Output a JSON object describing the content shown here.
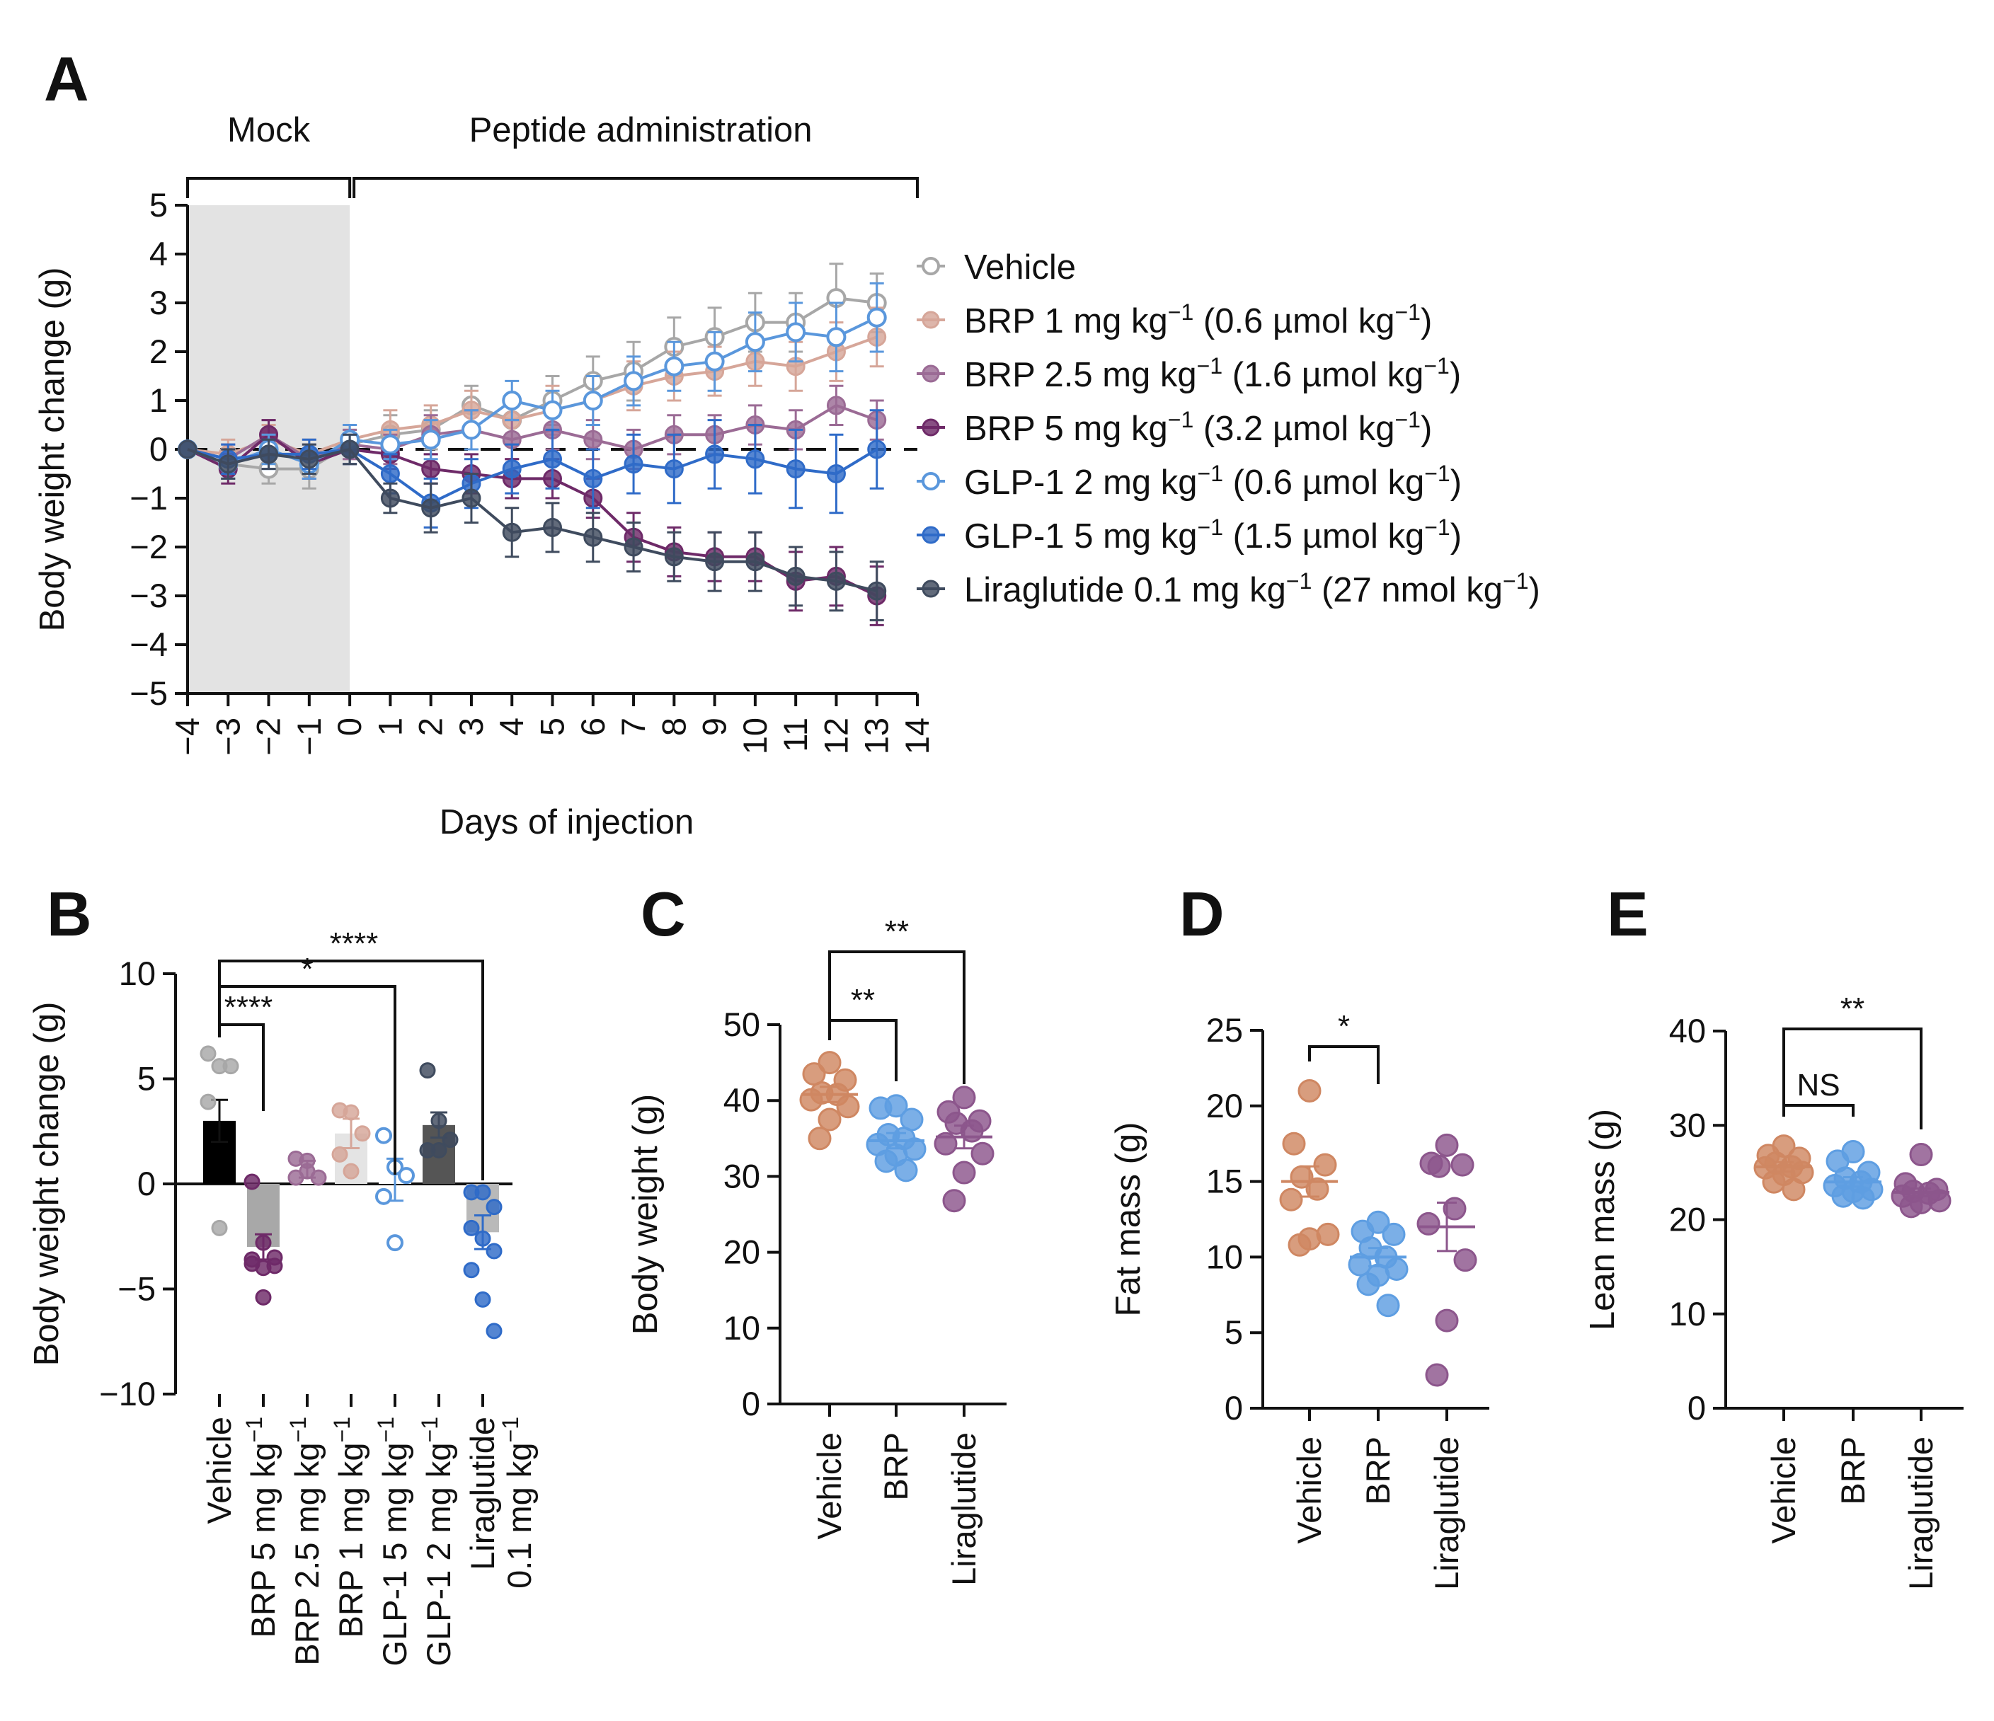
{
  "panel_labels": [
    "A",
    "B",
    "C",
    "D",
    "E"
  ],
  "colors": {
    "vehicle": "#a7a7a7",
    "brp1": "#d6a699",
    "brp25": "#9b6b95",
    "brp5": "#6e2a68",
    "glp1_2": "#5a97dc",
    "glp1_5": "#2f6bc8",
    "lira": "#3f4b5e",
    "orange": "#cf8762",
    "blue": "#5e9ee2",
    "purple": "#8c568c",
    "mock_shade": "#e3e3e3"
  },
  "chart_data": [
    {
      "panel": "A",
      "type": "line",
      "brackets": [
        "Mock",
        "Peptide administration"
      ],
      "xlabel": "Days of injection",
      "ylabel": "Body weight change (g)",
      "xlim": [
        -4,
        14
      ],
      "ylim": [
        -5,
        5
      ],
      "xticks": [
        "−4",
        "−3",
        "−2",
        "−1",
        "0",
        "1",
        "2",
        "3",
        "4",
        "5",
        "6",
        "7",
        "8",
        "9",
        "10",
        "11",
        "12",
        "13",
        "14"
      ],
      "yticks": [
        "5",
        "4",
        "3",
        "2",
        "1",
        "0",
        "−1",
        "−2",
        "−3",
        "−4",
        "−5"
      ],
      "x": [
        -4,
        -3,
        -2,
        -1,
        0,
        1,
        2,
        3,
        4,
        5,
        6,
        7,
        8,
        9,
        10,
        11,
        12,
        13
      ],
      "legend_position": "right",
      "series": [
        {
          "legend": [
            "Vehicle",
            "",
            "",
            ""
          ],
          "color_key": "vehicle",
          "filled": false,
          "values": [
            0,
            -0.3,
            -0.4,
            -0.4,
            0.1,
            0.3,
            0.4,
            0.9,
            0.6,
            1.0,
            1.4,
            1.6,
            2.1,
            2.3,
            2.6,
            2.6,
            3.1,
            3.0
          ],
          "err": [
            0,
            0.3,
            0.3,
            0.4,
            0.3,
            0.4,
            0.4,
            0.4,
            0.5,
            0.5,
            0.5,
            0.6,
            0.6,
            0.6,
            0.6,
            0.6,
            0.7,
            0.6
          ]
        },
        {
          "legend": [
            "BRP 1 mg kg",
            "−1",
            " (0.6 µmol kg",
            "−1",
            ")"
          ],
          "color_key": "brp1",
          "filled": true,
          "values": [
            0,
            -0.1,
            0.2,
            -0.1,
            0.2,
            0.4,
            0.5,
            0.8,
            0.6,
            0.8,
            1.0,
            1.3,
            1.5,
            1.6,
            1.8,
            1.7,
            2.0,
            2.3
          ],
          "err": [
            0,
            0.3,
            0.3,
            0.3,
            0.3,
            0.4,
            0.4,
            0.4,
            0.5,
            0.5,
            0.5,
            0.5,
            0.5,
            0.5,
            0.5,
            0.5,
            0.6,
            0.6
          ]
        },
        {
          "legend": [
            "BRP 2.5 mg kg",
            "−1",
            " (1.6 µmol kg",
            "−1",
            ")"
          ],
          "color_key": "brp25",
          "filled": true,
          "values": [
            0,
            -0.2,
            0.3,
            -0.2,
            0.1,
            0.0,
            0.3,
            0.4,
            0.2,
            0.4,
            0.2,
            0.0,
            0.3,
            0.3,
            0.5,
            0.4,
            0.9,
            0.6
          ],
          "err": [
            0,
            0.3,
            0.3,
            0.3,
            0.3,
            0.3,
            0.4,
            0.4,
            0.4,
            0.4,
            0.4,
            0.4,
            0.4,
            0.4,
            0.4,
            0.4,
            0.4,
            0.4
          ]
        },
        {
          "legend": [
            "BRP 5 mg kg",
            "−1",
            " (3.2 µmol kg",
            "−1",
            ")"
          ],
          "color_key": "brp5",
          "filled": true,
          "values": [
            0,
            -0.4,
            0.3,
            -0.3,
            0.0,
            -0.1,
            -0.4,
            -0.5,
            -0.6,
            -0.6,
            -1.0,
            -1.8,
            -2.1,
            -2.2,
            -2.2,
            -2.7,
            -2.6,
            -3.0
          ],
          "err": [
            0,
            0.3,
            0.3,
            0.3,
            0.3,
            0.3,
            0.3,
            0.4,
            0.4,
            0.4,
            0.4,
            0.5,
            0.5,
            0.5,
            0.5,
            0.6,
            0.6,
            0.6
          ]
        },
        {
          "legend": [
            "GLP-1 2 mg kg",
            "−1",
            " (0.6 µmol kg",
            "−1",
            ")"
          ],
          "color_key": "glp1_2",
          "filled": false,
          "values": [
            0,
            -0.3,
            0.0,
            -0.3,
            0.2,
            0.1,
            0.2,
            0.4,
            1.0,
            0.8,
            1.0,
            1.4,
            1.7,
            1.8,
            2.2,
            2.4,
            2.3,
            2.7
          ],
          "err": [
            0,
            0.3,
            0.3,
            0.3,
            0.3,
            0.3,
            0.4,
            0.4,
            0.4,
            0.4,
            0.5,
            0.5,
            0.5,
            0.6,
            0.6,
            0.6,
            0.7,
            0.7
          ]
        },
        {
          "legend": [
            "GLP-1 5 mg kg",
            "−1",
            " (1.5 µmol kg",
            "−1",
            ")"
          ],
          "color_key": "glp1_5",
          "filled": true,
          "values": [
            0,
            -0.2,
            -0.1,
            -0.1,
            0.0,
            -0.5,
            -1.1,
            -0.7,
            -0.4,
            -0.2,
            -0.6,
            -0.3,
            -0.4,
            -0.1,
            -0.2,
            -0.4,
            -0.5,
            0.0
          ],
          "err": [
            0,
            0.3,
            0.3,
            0.3,
            0.3,
            0.4,
            0.5,
            0.5,
            0.5,
            0.6,
            0.6,
            0.6,
            0.7,
            0.7,
            0.7,
            0.8,
            0.8,
            0.8
          ]
        },
        {
          "legend": [
            "Liraglutide 0.1 mg kg",
            "−1",
            " (27 nmol kg",
            "−1",
            ")"
          ],
          "color_key": "lira",
          "filled": true,
          "values": [
            0,
            -0.3,
            -0.1,
            -0.2,
            0.0,
            -1.0,
            -1.2,
            -1.0,
            -1.7,
            -1.6,
            -1.8,
            -2.0,
            -2.2,
            -2.3,
            -2.3,
            -2.6,
            -2.7,
            -2.9
          ],
          "err": [
            0,
            0.3,
            0.3,
            0.3,
            0.3,
            0.3,
            0.5,
            0.5,
            0.5,
            0.5,
            0.5,
            0.5,
            0.5,
            0.6,
            0.6,
            0.6,
            0.6,
            0.6
          ]
        }
      ]
    },
    {
      "panel": "B",
      "type": "bar",
      "ylabel": "Body weight change (g)",
      "ylim": [
        -10,
        10
      ],
      "yticks": [
        "10",
        "5",
        "0",
        "−5",
        "−10"
      ],
      "categories": [
        [
          "Vehicle"
        ],
        [
          "BRP 5 mg kg",
          "−1"
        ],
        [
          "BRP 2.5 mg kg",
          "−1"
        ],
        [
          "BRP 1 mg kg",
          "−1"
        ],
        [
          "GLP-1 5 mg kg",
          "−1"
        ],
        [
          "GLP-1 2 mg kg",
          "−1"
        ],
        [
          "Liraglutide",
          "0.1 mg kg",
          "−1"
        ]
      ],
      "bar_colors": [
        "#000000",
        "#a8a8a8",
        "#ffffff",
        "#e4e4e4",
        "#ffffff",
        "#555555",
        "#b9b9b9"
      ],
      "dot_color_keys": [
        "vehicle",
        "brp5",
        "brp25",
        "brp1",
        "glp1_2",
        "lira",
        "glp1_5"
      ],
      "dot_filled": [
        true,
        true,
        true,
        true,
        false,
        true,
        true
      ],
      "values": [
        3.0,
        -3.0,
        0.7,
        2.4,
        0.2,
        2.8,
        -2.3
      ],
      "err": [
        1.0,
        0.6,
        0.4,
        0.7,
        1.0,
        0.6,
        0.8
      ],
      "points": [
        [
          6.2,
          5.6,
          5.6,
          3.9,
          -2.1
        ],
        [
          0.1,
          -2.8,
          -3.5,
          -3.8,
          -4.0,
          -3.9,
          -3.6,
          -5.4
        ],
        [
          1.2,
          1.1,
          0.3,
          0.3,
          0.6
        ],
        [
          3.5,
          3.4,
          2.4,
          1.4,
          0.6
        ],
        [
          2.3,
          0.8,
          0.4,
          -0.6,
          -2.8
        ],
        [
          5.4,
          3.0,
          2.1,
          1.6,
          1.6
        ],
        [
          -0.4,
          -0.4,
          -1.1,
          -2.1,
          -2.6,
          -3.2,
          -4.1,
          -5.5,
          -7.0
        ]
      ],
      "significance": [
        {
          "from": 0,
          "to": 1,
          "label": "****"
        },
        {
          "from": 0,
          "to": 4,
          "label": "*"
        },
        {
          "from": 0,
          "to": 6,
          "label": "****"
        }
      ]
    },
    {
      "panel": "C",
      "type": "scatter",
      "ylabel": "Body weight (g)",
      "ylim": [
        0,
        50
      ],
      "yticks": [
        "50",
        "40",
        "30",
        "20",
        "10",
        "0"
      ],
      "categories": [
        "Vehicle",
        "BRP",
        "Liraglutide"
      ],
      "color_keys": [
        "orange",
        "blue",
        "purple"
      ],
      "means": [
        40.8,
        34.7,
        35.2
      ],
      "err": [
        1.0,
        1.0,
        1.5
      ],
      "points": [
        [
          45.0,
          43.5,
          42.7,
          41.0,
          40.8,
          40.1,
          39.2,
          37.5,
          35.0
        ],
        [
          39.3,
          39.0,
          37.5,
          35.5,
          35.0,
          34.2,
          33.6,
          32.8,
          32.0,
          30.8
        ],
        [
          40.4,
          38.5,
          37.3,
          37.0,
          36.0,
          34.3,
          33.0,
          30.5,
          26.8
        ]
      ],
      "significance": [
        {
          "from": 0,
          "to": 1,
          "label": "**"
        },
        {
          "from": 0,
          "to": 2,
          "label": "**"
        }
      ]
    },
    {
      "panel": "D",
      "type": "scatter",
      "ylabel": "Fat mass (g)",
      "ylim": [
        0,
        25
      ],
      "yticks": [
        "25",
        "20",
        "15",
        "10",
        "5",
        "0"
      ],
      "categories": [
        "Vehicle",
        "BRP",
        "Liraglutide"
      ],
      "color_keys": [
        "orange",
        "blue",
        "purple"
      ],
      "means": [
        15.0,
        10.0,
        12.0
      ],
      "err": [
        1.0,
        0.6,
        1.6
      ],
      "points": [
        [
          21.0,
          17.5,
          16.1,
          15.3,
          14.5,
          13.8,
          11.5,
          11.2,
          10.8
        ],
        [
          12.3,
          11.7,
          11.5,
          10.6,
          10.0,
          9.5,
          9.2,
          8.8,
          8.2,
          6.8
        ],
        [
          17.4,
          16.2,
          16.1,
          16.0,
          13.2,
          12.2,
          9.8,
          5.8,
          2.2
        ]
      ],
      "significance": [
        {
          "from": 0,
          "to": 1,
          "label": "*"
        }
      ]
    },
    {
      "panel": "E",
      "type": "scatter",
      "ylabel": "Lean mass (g)",
      "ylim": [
        0,
        40
      ],
      "yticks": [
        "40",
        "30",
        "20",
        "10",
        "0"
      ],
      "categories": [
        "Vehicle",
        "BRP",
        "Liraglutide"
      ],
      "color_keys": [
        "orange",
        "blue",
        "purple"
      ],
      "means": [
        25.6,
        24.0,
        22.9
      ],
      "err": [
        0.5,
        0.5,
        0.4
      ],
      "points": [
        [
          27.8,
          26.8,
          26.5,
          26.0,
          25.6,
          25.5,
          25.0,
          24.8,
          24.0,
          23.2
        ],
        [
          27.2,
          26.2,
          25.0,
          24.4,
          24.0,
          23.6,
          23.2,
          23.0,
          22.5,
          22.3
        ],
        [
          26.9,
          23.8,
          23.2,
          23.0,
          22.8,
          22.5,
          22.0,
          21.8,
          21.4
        ]
      ],
      "significance": [
        {
          "from": 0,
          "to": 1,
          "label": "NS"
        },
        {
          "from": 0,
          "to": 2,
          "label": "**"
        }
      ]
    }
  ]
}
